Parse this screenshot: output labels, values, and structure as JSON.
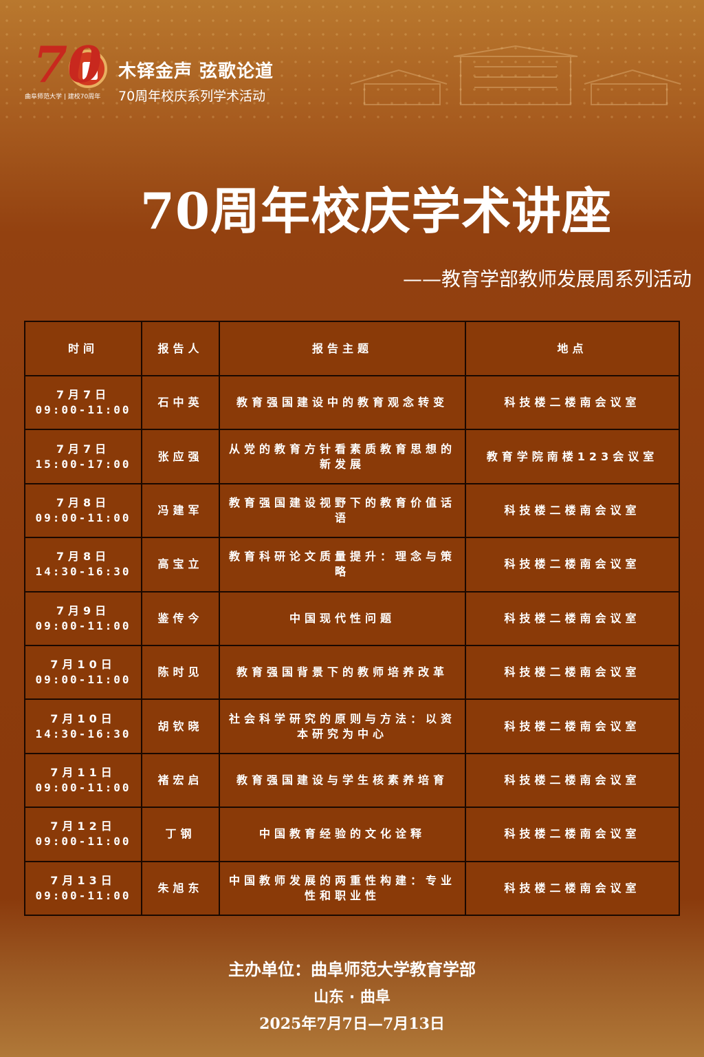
{
  "header": {
    "logo_text": "曲阜师范大学 | 建校70周年",
    "logo_number": "70",
    "slogan": "木铎金声 弦歌论道",
    "slogan_sub": "70周年校庆系列学术活动"
  },
  "title": "70周年校庆学术讲座",
  "subtitle": "——教育学部教师发展周系列活动",
  "table": {
    "headers": [
      "时间",
      "报告人",
      "报告主题",
      "地点"
    ],
    "rows": [
      {
        "date": "7月7日",
        "time": "09:00-11:00",
        "speaker": "石中英",
        "topic": "教育强国建设中的教育观念转变",
        "place": "科技楼二楼南会议室"
      },
      {
        "date": "7月7日",
        "time": "15:00-17:00",
        "speaker": "张应强",
        "topic": "从党的教育方针看素质教育思想的新发展",
        "place": "教育学院南楼123会议室"
      },
      {
        "date": "7月8日",
        "time": "09:00-11:00",
        "speaker": "冯建军",
        "topic": "教育强国建设视野下的教育价值话语",
        "place": "科技楼二楼南会议室"
      },
      {
        "date": "7月8日",
        "time": "14:30-16:30",
        "speaker": "高宝立",
        "topic": "教育科研论文质量提升：理念与策略",
        "place": "科技楼二楼南会议室"
      },
      {
        "date": "7月9日",
        "time": "09:00-11:00",
        "speaker": "鉴传今",
        "topic": "中国现代性问题",
        "place": "科技楼二楼南会议室"
      },
      {
        "date": "7月10日",
        "time": "09:00-11:00",
        "speaker": "陈时见",
        "topic": "教育强国背景下的教师培养改革",
        "place": "科技楼二楼南会议室"
      },
      {
        "date": "7月10日",
        "time": "14:30-16:30",
        "speaker": "胡钦晓",
        "topic": "社会科学研究的原则与方法：以资本研究为中心",
        "place": "科技楼二楼南会议室"
      },
      {
        "date": "7月11日",
        "time": "09:00-11:00",
        "speaker": "褚宏启",
        "topic": "教育强国建设与学生核素养培育",
        "place": "科技楼二楼南会议室"
      },
      {
        "date": "7月12日",
        "time": "09:00-11:00",
        "speaker": "丁钢",
        "topic": "中国教育经验的文化诠释",
        "place": "科技楼二楼南会议室"
      },
      {
        "date": "7月13日",
        "time": "09:00-11:00",
        "speaker": "朱旭东",
        "topic": "中国教师发展的两重性构建：专业性和职业性",
        "place": "科技楼二楼南会议室"
      }
    ]
  },
  "footer": {
    "organizer": "主办单位：曲阜师范大学教育学部",
    "location": "山东 · 曲阜",
    "dates": "2025年7月7日—7月13日"
  },
  "colors": {
    "background": "#8a3a0c",
    "table_bg": "#8a3a08",
    "border": "#1a0800",
    "logo_red": "#c8281e"
  }
}
